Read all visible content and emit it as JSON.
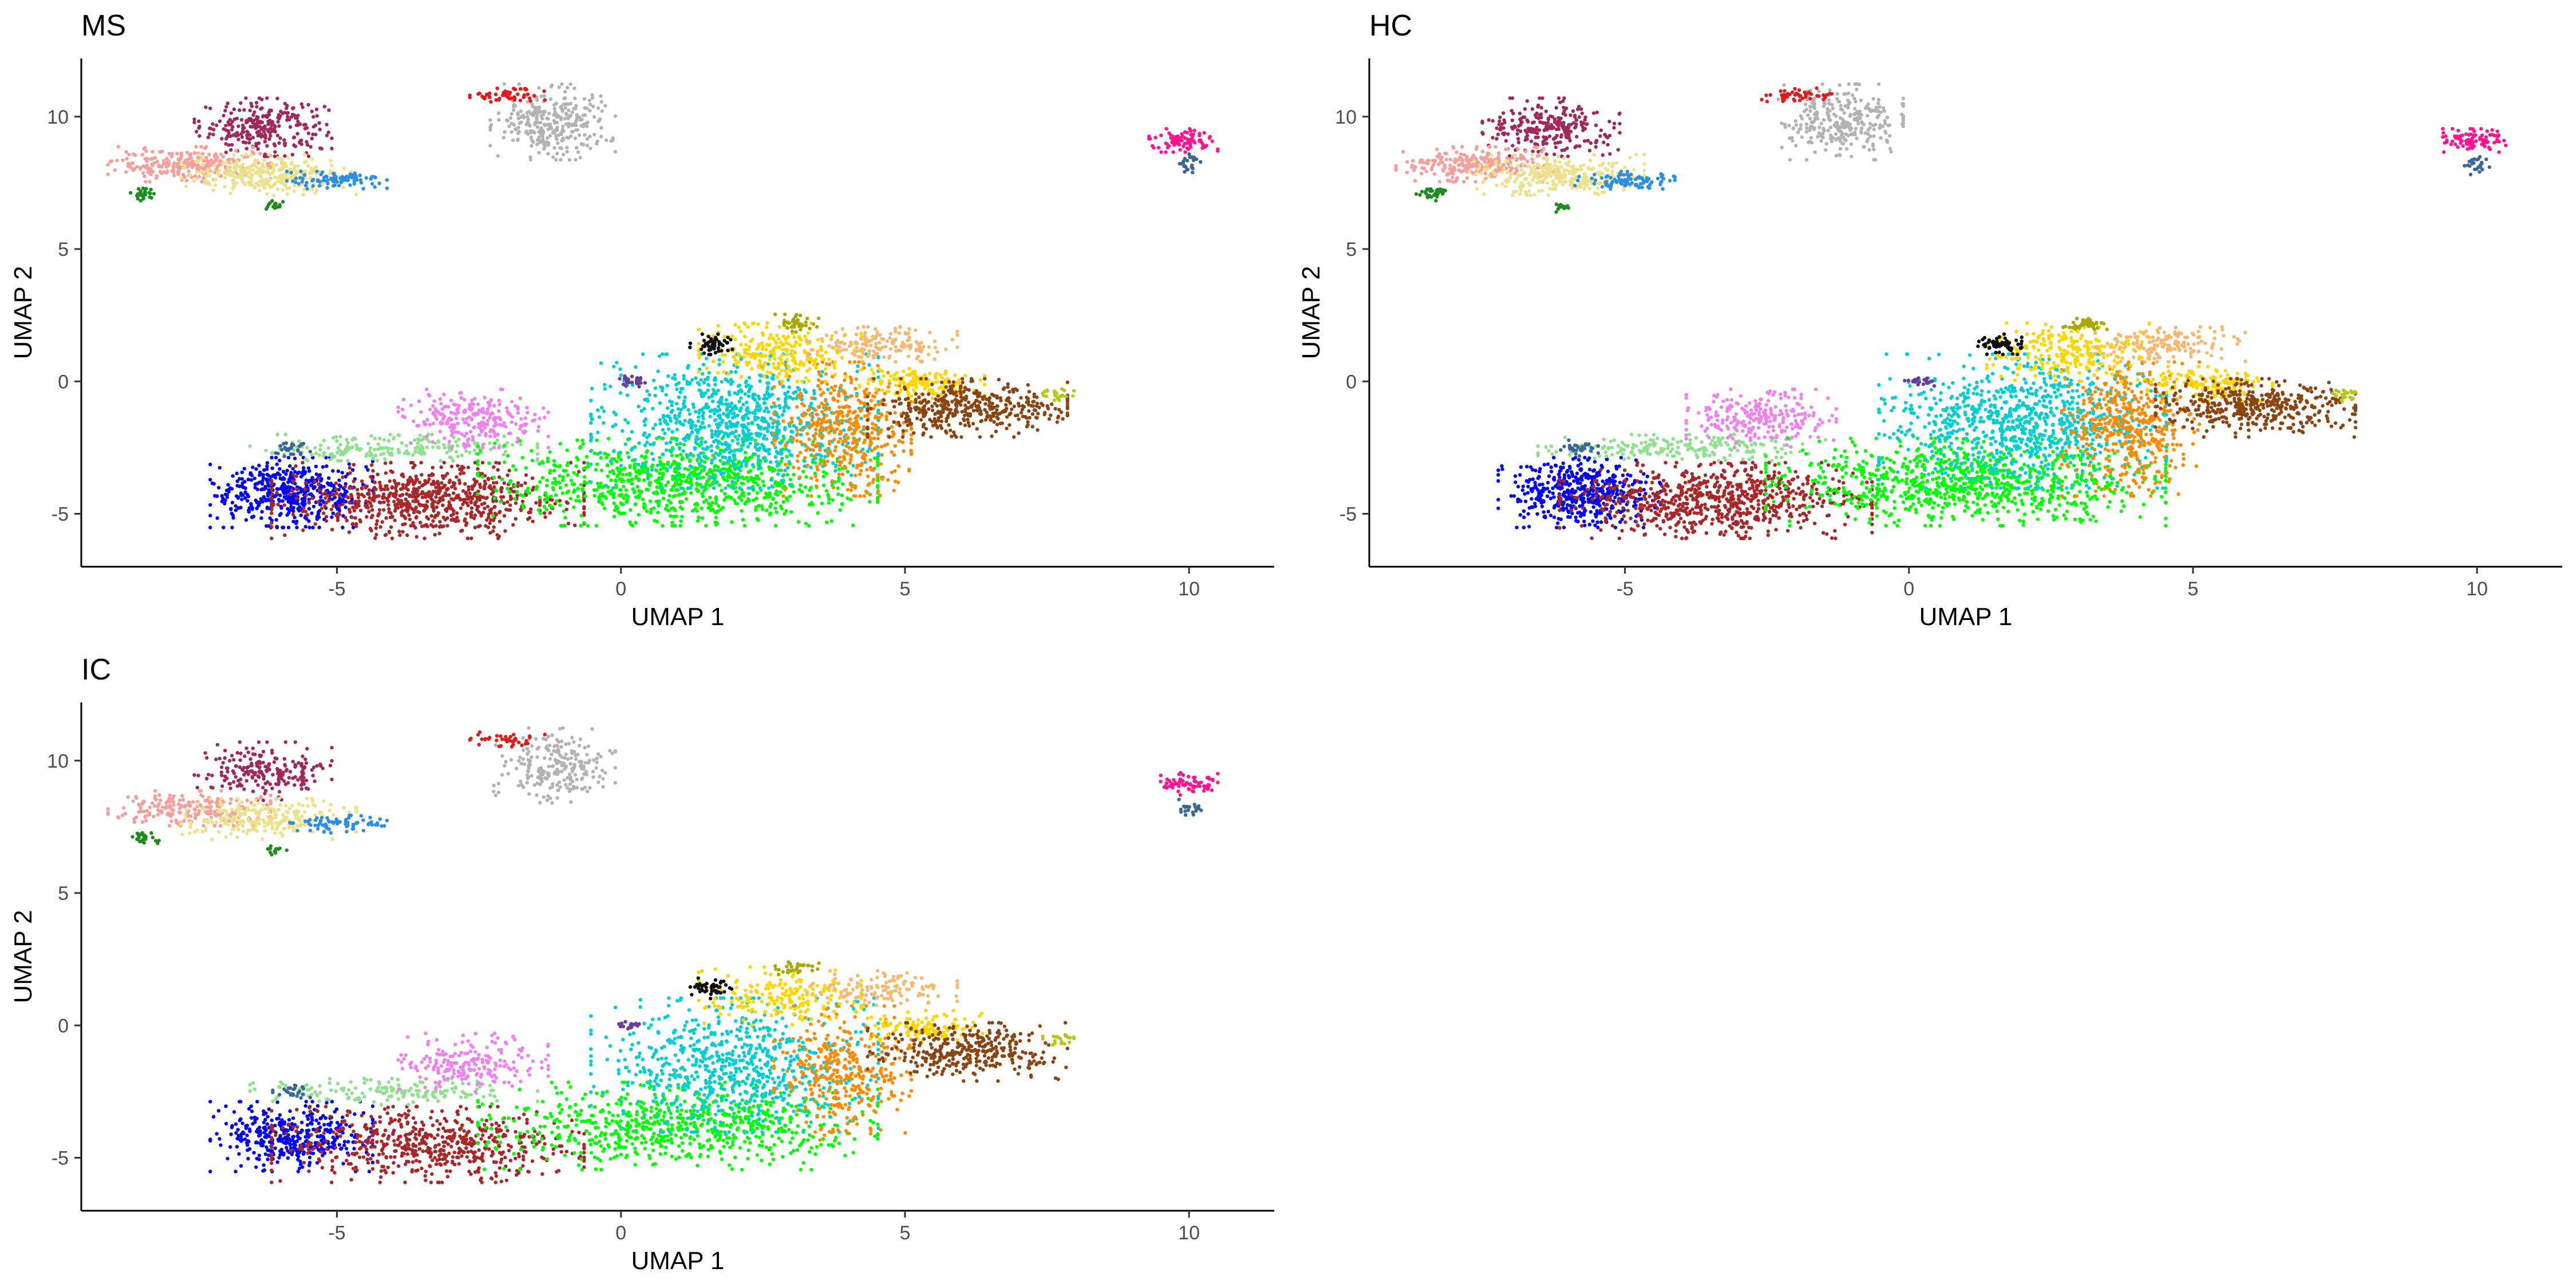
{
  "chart_data": [
    {
      "type": "scatter",
      "title": "MS",
      "xlabel": "UMAP 1",
      "ylabel": "UMAP 2",
      "xlim": [
        -9.5,
        11.5
      ],
      "ylim": [
        -7,
        12.2
      ],
      "x_ticks": [
        -5,
        0,
        5,
        10
      ],
      "y_ticks": [
        -5,
        0,
        5,
        10
      ],
      "grid": false,
      "legend": "none"
    },
    {
      "type": "scatter",
      "title": "HC",
      "xlabel": "UMAP 1",
      "ylabel": "UMAP 2",
      "xlim": [
        -9.5,
        11.5
      ],
      "ylim": [
        -7,
        12.2
      ],
      "x_ticks": [
        -5,
        0,
        5,
        10
      ],
      "y_ticks": [
        -5,
        0,
        5,
        10
      ],
      "grid": false,
      "legend": "none"
    },
    {
      "type": "scatter",
      "title": "IC",
      "xlabel": "UMAP 1",
      "ylabel": "UMAP 2",
      "xlim": [
        -9.5,
        11.5
      ],
      "ylim": [
        -7,
        12.2
      ],
      "x_ticks": [
        -5,
        0,
        5,
        10
      ],
      "y_ticks": [
        -5,
        0,
        5,
        10
      ],
      "grid": false,
      "legend": "none"
    }
  ],
  "clusters": [
    {
      "color": "#9e2a5c",
      "cx": -6.3,
      "cy": 9.6,
      "rx": 1.1,
      "ry": 1.0,
      "n": 260
    },
    {
      "color": "#f4a09c",
      "cx": -7.6,
      "cy": 8.2,
      "rx": 1.3,
      "ry": 0.6,
      "n": 260
    },
    {
      "color": "#ede28c",
      "cx": -6.2,
      "cy": 7.8,
      "rx": 1.4,
      "ry": 0.7,
      "n": 300
    },
    {
      "color": "#2e8fe0",
      "cx": -5.0,
      "cy": 7.6,
      "rx": 0.8,
      "ry": 0.3,
      "n": 90
    },
    {
      "color": "#1e8c1e",
      "cx": -8.4,
      "cy": 7.1,
      "rx": 0.25,
      "ry": 0.25,
      "n": 30
    },
    {
      "color": "#1e8c1e",
      "cx": -6.1,
      "cy": 6.6,
      "rx": 0.2,
      "ry": 0.2,
      "n": 15
    },
    {
      "color": "#b3b3b3",
      "cx": -1.2,
      "cy": 9.8,
      "rx": 1.0,
      "ry": 1.3,
      "n": 300
    },
    {
      "color": "#e01b1b",
      "cx": -2.0,
      "cy": 10.8,
      "rx": 0.6,
      "ry": 0.25,
      "n": 50
    },
    {
      "color": "#ff1493",
      "cx": 9.9,
      "cy": 9.1,
      "rx": 0.55,
      "ry": 0.4,
      "n": 90
    },
    {
      "color": "#3a6794",
      "cx": 10.0,
      "cy": 8.2,
      "rx": 0.2,
      "ry": 0.35,
      "n": 25
    },
    {
      "color": "#0000ff",
      "cx": -5.8,
      "cy": -4.2,
      "rx": 1.3,
      "ry": 1.2,
      "n": 500
    },
    {
      "color": "#a8282a",
      "cx": -3.4,
      "cy": -4.5,
      "rx": 2.5,
      "ry": 1.3,
      "n": 750
    },
    {
      "color": "#90e090",
      "cx": -4.0,
      "cy": -2.5,
      "rx": 2.3,
      "ry": 0.45,
      "n": 200
    },
    {
      "color": "#ee82ee",
      "cx": -2.6,
      "cy": -1.4,
      "rx": 1.2,
      "ry": 1.0,
      "n": 250
    },
    {
      "color": "#00ff00",
      "cx": 1.0,
      "cy": -3.8,
      "rx": 3.2,
      "ry": 1.5,
      "n": 900
    },
    {
      "color": "#00ced1",
      "cx": 2.0,
      "cy": -1.5,
      "rx": 2.3,
      "ry": 2.3,
      "n": 900
    },
    {
      "color": "#ff8c00",
      "cx": 3.9,
      "cy": -1.8,
      "rx": 1.1,
      "ry": 2.3,
      "n": 450
    },
    {
      "color": "#ffd700",
      "cx": 2.8,
      "cy": 1.1,
      "rx": 1.3,
      "ry": 1.0,
      "n": 250
    },
    {
      "color": "#ffd700",
      "cx": 5.3,
      "cy": -0.1,
      "rx": 1.0,
      "ry": 0.6,
      "n": 150
    },
    {
      "color": "#f5b972",
      "cx": 4.6,
      "cy": 1.4,
      "rx": 1.2,
      "ry": 0.6,
      "n": 160
    },
    {
      "color": "#8b4513",
      "cx": 6.1,
      "cy": -1.0,
      "rx": 1.6,
      "ry": 1.0,
      "n": 420
    },
    {
      "color": "#a8a800",
      "cx": 3.1,
      "cy": 2.2,
      "rx": 0.35,
      "ry": 0.3,
      "n": 40
    },
    {
      "color": "#b5c918",
      "cx": 7.7,
      "cy": -0.5,
      "rx": 0.25,
      "ry": 0.25,
      "n": 25
    },
    {
      "color": "#111111",
      "cx": 1.6,
      "cy": 1.4,
      "rx": 0.35,
      "ry": 0.35,
      "n": 60
    },
    {
      "color": "#6a3d9a",
      "cx": 0.2,
      "cy": 0.0,
      "rx": 0.25,
      "ry": 0.18,
      "n": 25
    },
    {
      "color": "#3a6794",
      "cx": -5.8,
      "cy": -2.5,
      "rx": 0.3,
      "ry": 0.3,
      "n": 30
    }
  ]
}
